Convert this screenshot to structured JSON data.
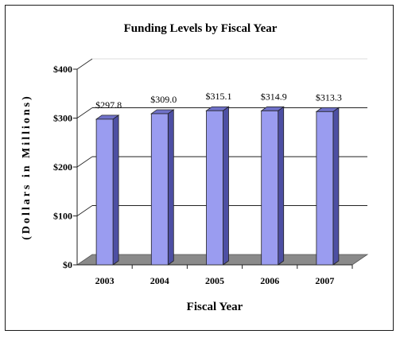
{
  "chart_data": {
    "type": "bar",
    "title": "Funding Levels by Fiscal Year",
    "xlabel": "Fiscal Year",
    "ylabel": "(Dollars in Millions)",
    "categories": [
      "2003",
      "2004",
      "2005",
      "2006",
      "2007"
    ],
    "values": [
      297.8,
      309.0,
      315.1,
      314.9,
      313.3
    ],
    "data_labels": [
      "$297.8",
      "$309.0",
      "$315.1",
      "$314.9",
      "$313.3"
    ],
    "y_ticks": [
      0,
      100,
      200,
      300,
      400
    ],
    "y_tick_labels": [
      "$0",
      "$100",
      "$200",
      "$300",
      "$400"
    ],
    "ylim": [
      0,
      400
    ],
    "grid": true,
    "legend": "none",
    "three_d": true,
    "colors": {
      "bar_front": "#9a9cf0",
      "bar_side": "#4d4fa3",
      "bar_top": "#6f71c9",
      "floor": "#8a8a8a",
      "grid": "#222222"
    }
  }
}
